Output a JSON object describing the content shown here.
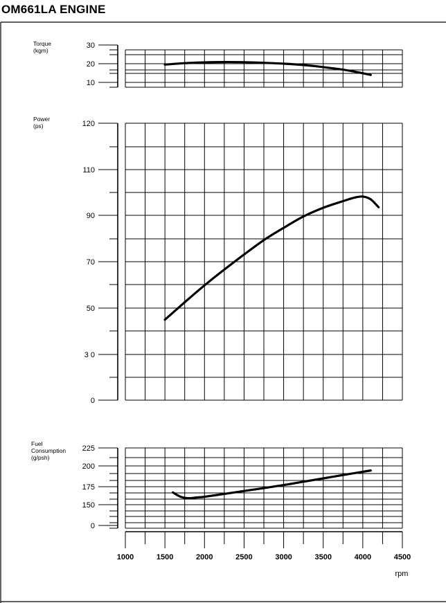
{
  "page": {
    "title": "OM661LA ENGINE"
  },
  "chart_data": {
    "type": "line",
    "title": "OM661LA ENGINE",
    "x": {
      "label": "rpm",
      "ticks": [
        1000,
        1500,
        2000,
        2500,
        3000,
        3500,
        4000,
        4500
      ],
      "range": [
        1000,
        4500
      ]
    },
    "grid": true,
    "panels": [
      {
        "id": "torque",
        "label": [
          "Torque",
          "(kgm)"
        ],
        "ticks": [
          "30",
          "20",
          "10"
        ],
        "tick_values": [
          30,
          20,
          10
        ],
        "range": [
          10,
          30
        ],
        "series": [
          {
            "x": [
              1500,
              1750,
              2000,
              2250,
              2500,
              2750,
              3000,
              3250,
              3500,
              3750,
              4000,
              4100
            ],
            "y": [
              19.5,
              20.3,
              20.7,
              20.9,
              20.8,
              20.5,
              20.0,
              19.3,
              18.2,
              16.8,
              14.9,
              14.0
            ]
          }
        ]
      },
      {
        "id": "power",
        "label": [
          "Power",
          "(ps)"
        ],
        "ticks": [
          "120",
          "110",
          "90",
          "70",
          "50",
          "3 0",
          "0"
        ],
        "tick_values": [
          120,
          110,
          90,
          70,
          50,
          30,
          0
        ],
        "series": [
          {
            "x": [
              1500,
              1750,
              2000,
              2250,
              2500,
              2750,
              3000,
              3250,
              3500,
              3750,
              3900,
              4000,
              4100,
              4200
            ],
            "y": [
              45,
              52.5,
              59.8,
              66.6,
              73.1,
              79.3,
              84.6,
              89.5,
              93.3,
              96.2,
              97.8,
              98.2,
              97.0,
              93.5
            ]
          }
        ]
      },
      {
        "id": "fuel",
        "label": [
          "Fuel",
          "Consumption",
          "(g/psh)"
        ],
        "ticks": [
          "225",
          "200",
          "175",
          "150",
          "0"
        ],
        "tick_values": [
          225,
          200,
          175,
          150,
          0
        ],
        "series": [
          {
            "x": [
              1600,
              1700,
              1800,
              1900,
              2000,
              2250,
              2500,
              2750,
              3000,
              3250,
              3500,
              3750,
              4000,
              4100
            ],
            "y": [
              167,
              161,
              159,
              160,
              161,
              165,
              169,
              173,
              177,
              181,
              185,
              189,
              193,
              194.5
            ]
          }
        ]
      }
    ]
  }
}
